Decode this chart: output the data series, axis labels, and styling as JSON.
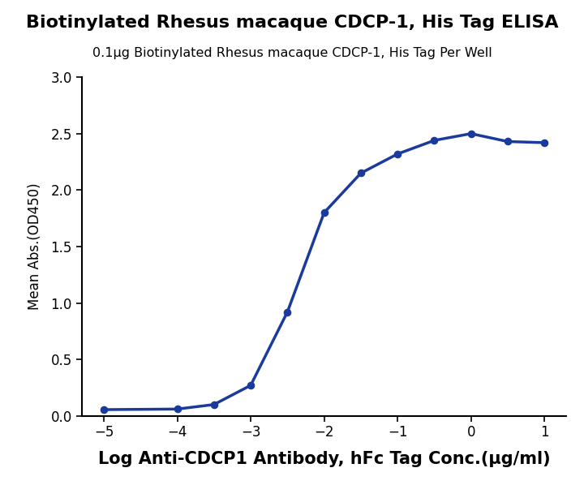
{
  "title": "Biotinylated Rhesus macaque CDCP-1, His Tag ELISA",
  "subtitle": "0.1μg Biotinylated Rhesus macaque CDCP-1, His Tag Per Well",
  "xlabel": "Log Anti-CDCP1 Antibody, hFc Tag Conc.(μg/ml)",
  "ylabel": "Mean Abs.(OD450)",
  "x_data": [
    -5,
    -4,
    -3.5,
    -3,
    -2.5,
    -2,
    -1.5,
    -1,
    -0.5,
    0,
    0.5,
    1
  ],
  "y_data": [
    0.055,
    0.06,
    0.1,
    0.27,
    0.92,
    1.8,
    2.15,
    2.32,
    2.44,
    2.5,
    2.43,
    2.42
  ],
  "xlim": [
    -5.3,
    1.3
  ],
  "ylim": [
    0.0,
    3.0
  ],
  "yticks": [
    0.0,
    0.5,
    1.0,
    1.5,
    2.0,
    2.5,
    3.0
  ],
  "xticks": [
    -5,
    -4,
    -3,
    -2,
    -1,
    0,
    1
  ],
  "line_color": "#1a3a9c",
  "marker_color": "#1a3a9c",
  "background_color": "#ffffff",
  "title_fontsize": 16,
  "subtitle_fontsize": 11.5,
  "xlabel_fontsize": 15,
  "ylabel_fontsize": 12
}
